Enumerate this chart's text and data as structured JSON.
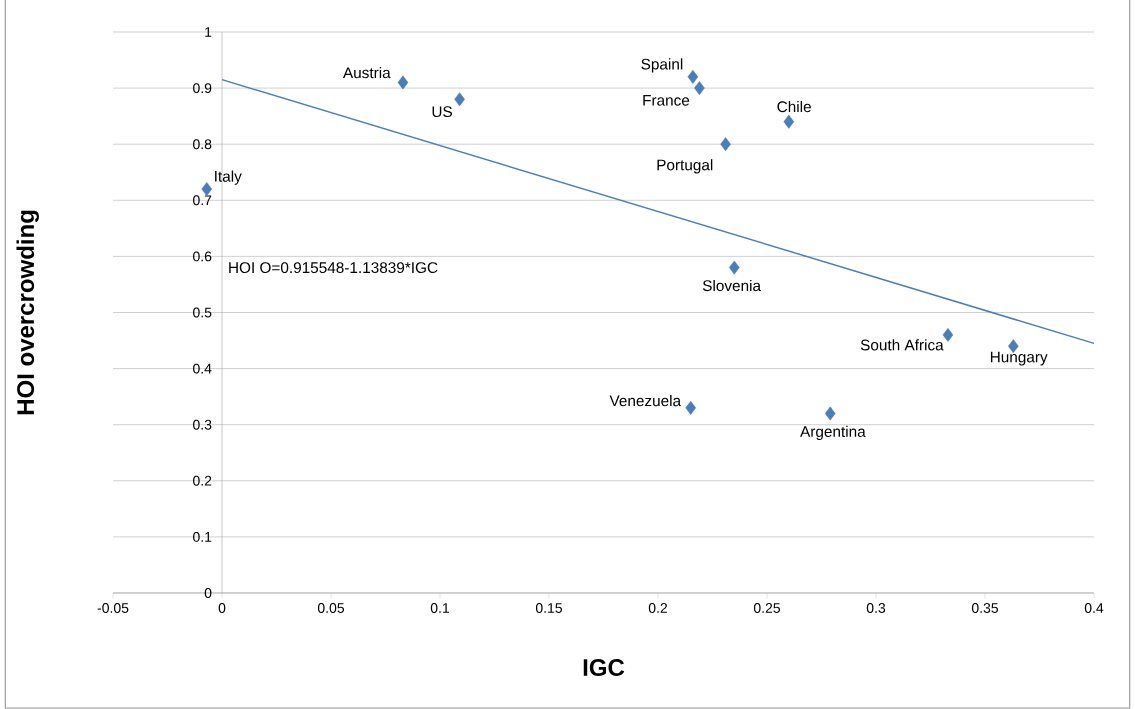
{
  "chart_data": {
    "type": "scatter",
    "xlabel": "IGC",
    "ylabel": "HOI overcrowding",
    "xlim": [
      -0.05,
      0.4
    ],
    "ylim": [
      0,
      1
    ],
    "xticks": [
      -0.05,
      0,
      0.05,
      0.1,
      0.15,
      0.2,
      0.25,
      0.3,
      0.35,
      0.4
    ],
    "yticks": [
      0,
      0.1,
      0.2,
      0.3,
      0.4,
      0.5,
      0.6,
      0.7,
      0.8,
      0.9,
      1
    ],
    "grid": "y",
    "series": [
      {
        "marker": "diamond",
        "color": "#4a7ebb",
        "x": [
          -0.007,
          0.083,
          0.109,
          0.216,
          0.219,
          0.231,
          0.26,
          0.235,
          0.333,
          0.363,
          0.215,
          0.279
        ],
        "values": [
          0.72,
          0.91,
          0.88,
          0.92,
          0.9,
          0.8,
          0.84,
          0.58,
          0.46,
          0.44,
          0.33,
          0.32
        ]
      },
      {
        "type": "line",
        "marker": "none",
        "color": "#4a7ebb",
        "x": [
          0,
          0.4
        ],
        "values": [
          0.915,
          0.445
        ]
      }
    ],
    "annotations": [
      {
        "text": "Italy",
        "x": -0.007,
        "y": 0.72
      },
      {
        "text": "Austria",
        "x": 0.083,
        "y": 0.91
      },
      {
        "text": "US",
        "x": 0.109,
        "y": 0.88
      },
      {
        "text": "Spainl",
        "x": 0.216,
        "y": 0.92
      },
      {
        "text": "France",
        "x": 0.219,
        "y": 0.9
      },
      {
        "text": "Portugal",
        "x": 0.231,
        "y": 0.8
      },
      {
        "text": "Chile",
        "x": 0.26,
        "y": 0.84
      },
      {
        "text": "Slovenia",
        "x": 0.235,
        "y": 0.58
      },
      {
        "text": "South Africa",
        "x": 0.333,
        "y": 0.46
      },
      {
        "text": "Hungary",
        "x": 0.363,
        "y": 0.44
      },
      {
        "text": "Venezuela",
        "x": 0.215,
        "y": 0.33
      },
      {
        "text": "Argentina",
        "x": 0.279,
        "y": 0.32
      },
      "HOI O=0.915548-1.13839*IGC"
    ]
  }
}
